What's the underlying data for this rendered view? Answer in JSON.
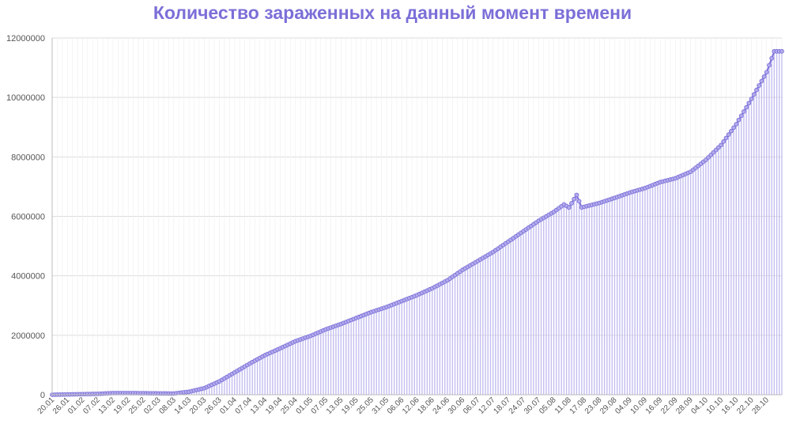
{
  "chart_data": {
    "type": "bar",
    "title": "Количество зараженных на данный момент времени",
    "xlabel": "",
    "ylabel": "",
    "ylim": [
      0,
      12000000
    ],
    "yticks": [
      "0",
      "2000000",
      "4000000",
      "6000000",
      "8000000",
      "10000000",
      "12000000"
    ],
    "ytick_values": [
      0,
      2000000,
      4000000,
      6000000,
      8000000,
      10000000,
      12000000
    ],
    "grid": true,
    "xtick_labels": [
      "20.01",
      "26.01",
      "01.02",
      "07.02",
      "13.02",
      "19.02",
      "25.02",
      "02.03",
      "08.03",
      "14.03",
      "20.03",
      "26.03",
      "01.04",
      "07.04",
      "13.04",
      "19.04",
      "25.04",
      "01.05",
      "07.05",
      "13.05",
      "19.05",
      "25.05",
      "31.05",
      "06.06",
      "12.06",
      "18.06",
      "24.06",
      "30.06",
      "06.07",
      "12.07",
      "18.07",
      "24.07",
      "30.07",
      "05.08",
      "11.08",
      "17.08",
      "23.08",
      "29.08",
      "04.09",
      "10.09",
      "16.09",
      "22.09",
      "28.09",
      "04.10",
      "10.10",
      "16.10",
      "22.10",
      "28.10"
    ],
    "x_start": "20.01",
    "x_end": "03.11",
    "anchors": [
      {
        "x": "20.01",
        "y": 0
      },
      {
        "x": "07.02",
        "y": 30000
      },
      {
        "x": "13.02",
        "y": 55000
      },
      {
        "x": "19.02",
        "y": 55000
      },
      {
        "x": "08.03",
        "y": 40000
      },
      {
        "x": "14.03",
        "y": 100000
      },
      {
        "x": "20.03",
        "y": 220000
      },
      {
        "x": "26.03",
        "y": 450000
      },
      {
        "x": "01.04",
        "y": 750000
      },
      {
        "x": "07.04",
        "y": 1050000
      },
      {
        "x": "13.04",
        "y": 1330000
      },
      {
        "x": "19.04",
        "y": 1560000
      },
      {
        "x": "25.04",
        "y": 1800000
      },
      {
        "x": "01.05",
        "y": 1980000
      },
      {
        "x": "07.05",
        "y": 2200000
      },
      {
        "x": "13.05",
        "y": 2380000
      },
      {
        "x": "19.05",
        "y": 2580000
      },
      {
        "x": "25.05",
        "y": 2780000
      },
      {
        "x": "31.05",
        "y": 2950000
      },
      {
        "x": "06.06",
        "y": 3150000
      },
      {
        "x": "12.06",
        "y": 3350000
      },
      {
        "x": "18.06",
        "y": 3580000
      },
      {
        "x": "24.06",
        "y": 3850000
      },
      {
        "x": "30.06",
        "y": 4200000
      },
      {
        "x": "06.07",
        "y": 4500000
      },
      {
        "x": "12.07",
        "y": 4800000
      },
      {
        "x": "18.07",
        "y": 5150000
      },
      {
        "x": "24.07",
        "y": 5500000
      },
      {
        "x": "30.07",
        "y": 5850000
      },
      {
        "x": "05.08",
        "y": 6150000
      },
      {
        "x": "09.08",
        "y": 6400000
      },
      {
        "x": "11.08",
        "y": 6300000
      },
      {
        "x": "14.08",
        "y": 6720000
      },
      {
        "x": "16.08",
        "y": 6300000
      },
      {
        "x": "23.08",
        "y": 6450000
      },
      {
        "x": "29.08",
        "y": 6620000
      },
      {
        "x": "04.09",
        "y": 6800000
      },
      {
        "x": "10.09",
        "y": 6950000
      },
      {
        "x": "16.09",
        "y": 7150000
      },
      {
        "x": "22.09",
        "y": 7280000
      },
      {
        "x": "28.09",
        "y": 7500000
      },
      {
        "x": "04.10",
        "y": 7900000
      },
      {
        "x": "10.10",
        "y": 8400000
      },
      {
        "x": "16.10",
        "y": 9100000
      },
      {
        "x": "22.10",
        "y": 9950000
      },
      {
        "x": "28.10",
        "y": 10850000
      },
      {
        "x": "31.10",
        "y": 11550000
      },
      {
        "x": "03.11",
        "y": 11550000
      }
    ],
    "colors": {
      "bar": "#c3bef0",
      "line": "#7b6fd8",
      "marker_fill": "#b3acec",
      "grid": "#dddddd",
      "title": "#7b6fd8"
    }
  }
}
